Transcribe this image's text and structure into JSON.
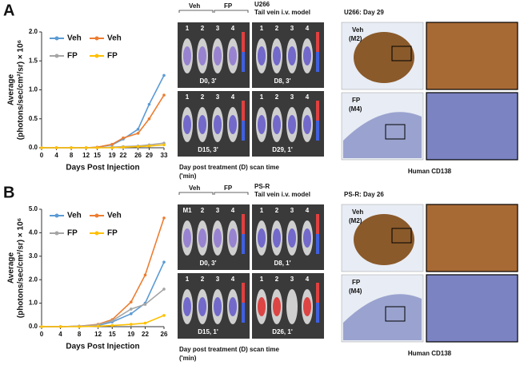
{
  "chart_data": [
    {
      "type": "line",
      "panel": "A",
      "ylabel": "Average",
      "ylabel2": "(photons/sec/cm²/sr) × 10⁶",
      "xlabel": "Days Post Injection",
      "x": [
        0,
        4,
        8,
        12,
        15,
        19,
        22,
        26,
        29,
        33
      ],
      "xlim": [
        0,
        33
      ],
      "xticks": [
        0,
        4,
        8,
        12,
        15,
        19,
        22,
        26,
        29,
        33
      ],
      "ylim": [
        0,
        2
      ],
      "yticks": [
        {
          "value": 0,
          "label": "0.0"
        },
        {
          "value": 0.5,
          "label": "0.5"
        },
        {
          "value": 1,
          "label": "1.0"
        },
        {
          "value": 1.5,
          "label": "1.5"
        },
        {
          "value": 2,
          "label": "2.0"
        }
      ],
      "series": [
        {
          "name": "Veh",
          "color": "#5b9bd5",
          "values": [
            0,
            0,
            0,
            0,
            0.01,
            0.05,
            0.15,
            0.32,
            0.75,
            1.25
          ]
        },
        {
          "name": "Veh",
          "color": "#ed7d31",
          "values": [
            0,
            0,
            0,
            0,
            0.01,
            0.06,
            0.17,
            0.25,
            0.5,
            0.91
          ]
        },
        {
          "name": "FP",
          "color": "#a5a5a5",
          "values": [
            0,
            0,
            0,
            0,
            0,
            0.01,
            0.02,
            0.03,
            0.05,
            0.08
          ]
        },
        {
          "name": "FP",
          "color": "#ffc000",
          "values": [
            0,
            0,
            0,
            0,
            0,
            0,
            0.01,
            0.02,
            0.03,
            0.05
          ]
        }
      ]
    },
    {
      "type": "line",
      "panel": "B",
      "ylabel": "Average",
      "ylabel2": "(photons/sec/cm²/sr) × 10⁶",
      "xlabel": "Days Post Injection",
      "x": [
        0,
        4,
        8,
        12,
        15,
        19,
        22,
        26
      ],
      "xlim": [
        0,
        26
      ],
      "xticks": [
        0,
        4,
        8,
        12,
        15,
        19,
        22,
        26
      ],
      "ylim": [
        0,
        5
      ],
      "yticks": [
        {
          "value": 0,
          "label": "0.0"
        },
        {
          "value": 1,
          "label": "1.0"
        },
        {
          "value": 2,
          "label": "2.0"
        },
        {
          "value": 3,
          "label": "3.0"
        },
        {
          "value": 4,
          "label": "4.0"
        },
        {
          "value": 5,
          "label": "5.0"
        }
      ],
      "series": [
        {
          "name": "Veh",
          "color": "#5b9bd5",
          "values": [
            0,
            0,
            0.02,
            0.05,
            0.2,
            0.55,
            1.0,
            2.75
          ]
        },
        {
          "name": "Veh",
          "color": "#ed7d31",
          "values": [
            0,
            0,
            0.02,
            0.1,
            0.3,
            1.05,
            2.2,
            4.63
          ]
        },
        {
          "name": "FP",
          "color": "#a5a5a5",
          "values": [
            0,
            0,
            0.02,
            0.08,
            0.25,
            0.75,
            0.95,
            1.6
          ]
        },
        {
          "name": "FP",
          "color": "#ffc000",
          "values": [
            0,
            0,
            0,
            0.02,
            0.05,
            0.1,
            0.15,
            0.48
          ]
        }
      ]
    }
  ],
  "imaging": [
    {
      "model": "U266",
      "model_line2": "Tail vein i.v. model",
      "groups": [
        "Veh",
        "FP"
      ],
      "mice": [
        "1",
        "2",
        "3",
        "4"
      ],
      "scans": [
        "D0, 3'",
        "D8, 3'",
        "D15, 3'",
        "D29, 1'"
      ],
      "caption": "Day post treatment (D) scan time",
      "caption2": "('min)"
    },
    {
      "model": "PS-R",
      "model_line2": "Tail vein i.v. model",
      "groups": [
        "Veh",
        "FP"
      ],
      "mice": [
        "1",
        "2",
        "3",
        "4"
      ],
      "mouse_tag": "M1",
      "scans": [
        "D0, 3'",
        "D8, 1'",
        "D15, 1'",
        "D26, 1'"
      ],
      "caption": "Day post treatment (D) scan time",
      "caption2": "('min)"
    }
  ],
  "histology": [
    {
      "title": "U266: Day 29",
      "veh": "Veh",
      "veh_id": "(M2)",
      "fp": "FP",
      "fp_id": "(M4)",
      "stain": "Human CD138"
    },
    {
      "title": "PS-R: Day 26",
      "veh": "Veh",
      "veh_id": "(M2)",
      "fp": "FP",
      "fp_id": "(M4)",
      "stain": "Human CD138"
    }
  ]
}
